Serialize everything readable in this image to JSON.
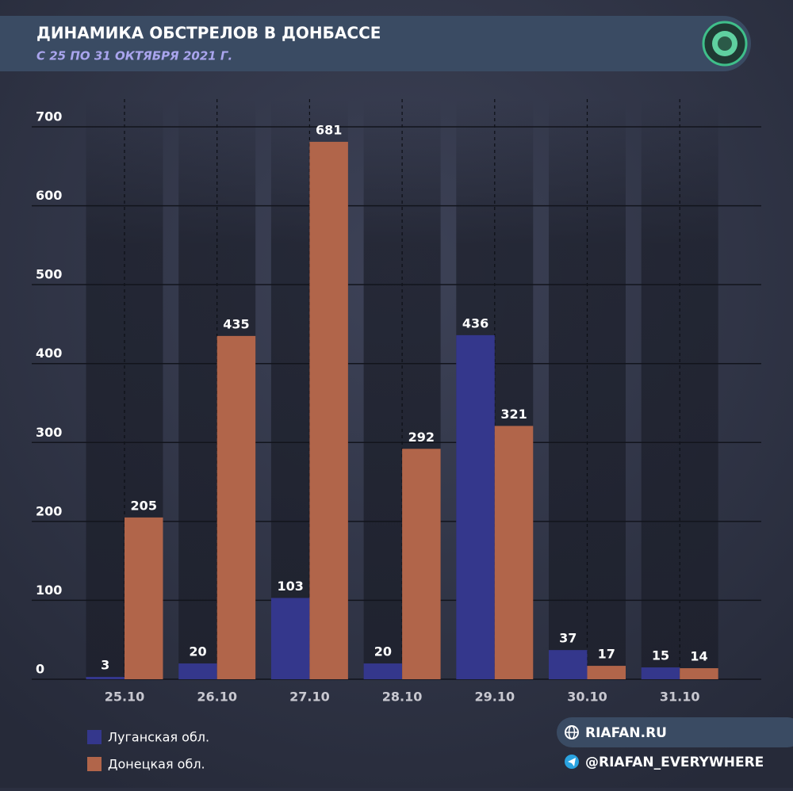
{
  "chart_data": {
    "type": "bar",
    "title": "ДИНАМИКА ОБСТРЕЛОВ В ДОНБАССЕ",
    "subtitle": "С 25 ПО 31 ОКТЯБРЯ 2021 Г.",
    "categories": [
      "25.10",
      "26.10",
      "27.10",
      "28.10",
      "29.10",
      "30.10",
      "31.10"
    ],
    "series": [
      {
        "name": "Луганская обл.",
        "color": "#34378c",
        "values": [
          3,
          20,
          103,
          20,
          436,
          37,
          15
        ]
      },
      {
        "name": "Донецкая обл.",
        "color": "#b1654a",
        "values": [
          205,
          435,
          681,
          292,
          321,
          17,
          14
        ]
      }
    ],
    "ylim": [
      0,
      700
    ],
    "yticks": [
      0,
      100,
      200,
      300,
      400,
      500,
      600,
      700
    ],
    "grid": true
  },
  "footer": {
    "site": "RIAFAN.RU",
    "telegram": "@RIAFAN_EVERYWHERE"
  }
}
